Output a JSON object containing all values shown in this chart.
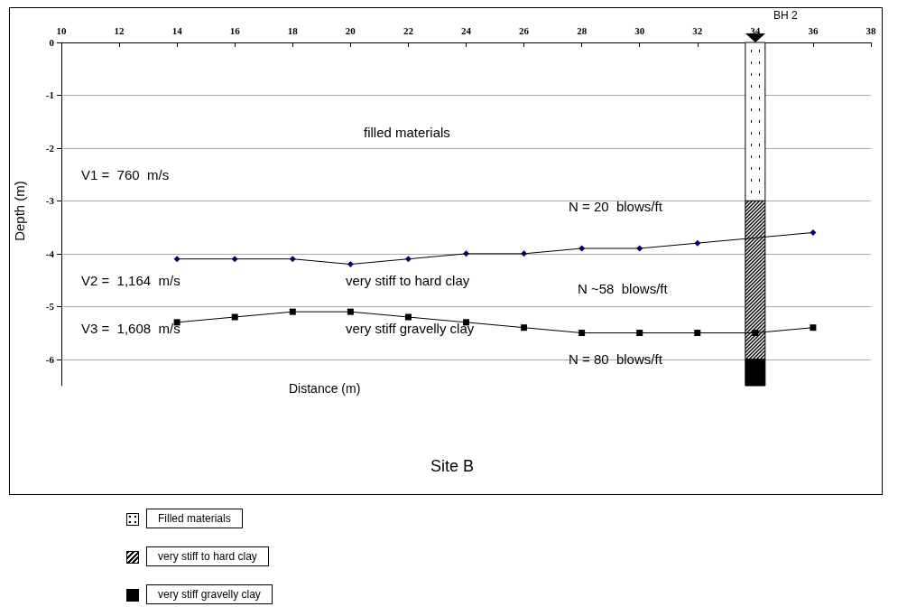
{
  "chart_data": {
    "type": "line",
    "title": "Site B",
    "xlabel": "Distance (m)",
    "ylabel": "Depth (m)",
    "xlim": [
      10,
      38
    ],
    "xticks": [
      10,
      12,
      14,
      16,
      18,
      20,
      22,
      24,
      26,
      28,
      30,
      32,
      34,
      36,
      38
    ],
    "ylim": [
      -6.5,
      0
    ],
    "yticks": [
      0,
      -1,
      -2,
      -3,
      -4,
      -5,
      -6
    ],
    "grid": "y",
    "legend": "bottom",
    "stacked": true,
    "series": [
      {
        "color": "#000066",
        "marker": "diamond",
        "x": [
          14,
          16,
          18,
          20,
          22,
          24,
          26,
          28,
          30,
          32,
          36
        ],
        "values": [
          -4.1,
          -4.1,
          -4.1,
          -4.2,
          -4.1,
          -4.0,
          -4.0,
          -3.9,
          -3.9,
          -3.8,
          -3.6
        ]
      },
      {
        "color": "#000000",
        "marker": "square",
        "x": [
          14,
          16,
          18,
          20,
          22,
          24,
          26,
          28,
          30,
          32,
          34,
          36
        ],
        "values": [
          -5.3,
          -5.2,
          -5.1,
          -5.1,
          -5.2,
          -5.3,
          -5.4,
          -5.5,
          -5.5,
          -5.5,
          -5.5,
          -5.4
        ]
      },
      {
        "type": "bar",
        "name": "Filled materials",
        "color": "#ffffff",
        "x": [
          34
        ],
        "values": [
          -3
        ]
      },
      {
        "type": "bar",
        "name": "very stiff to hard clay",
        "color": "#000000",
        "x": [
          34
        ],
        "values": [
          -3
        ]
      },
      {
        "type": "bar",
        "name": "very stiff gravelly clay",
        "color": "#000000",
        "x": [
          34
        ],
        "values": [
          -0.5
        ]
      }
    ],
    "annotations": [
      "BH 2",
      "filled materials",
      "V1 =  760  m/s",
      "N = 20  blows/ft",
      "V2 =  1,164  m/s",
      "very stiff to hard clay",
      "N ~58  blows/ft",
      "V3 =  1,608  m/s",
      "very stiff gravelly clay",
      "N = 80  blows/ft"
    ]
  }
}
